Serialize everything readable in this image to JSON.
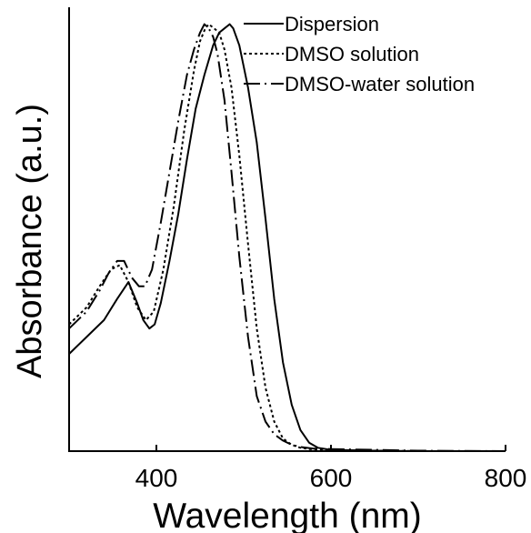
{
  "chart_data": {
    "type": "line",
    "title": "",
    "xlabel": "Wavelength (nm)",
    "ylabel": "Absorbance (a.u.)",
    "xlim": [
      300,
      800
    ],
    "ylim": [
      0,
      1.05
    ],
    "x_ticks": [
      400,
      600,
      800
    ],
    "x_tick_labels": [
      "400",
      "600",
      "800"
    ],
    "y_ticks_shown": false,
    "grid": false,
    "legend_position": "top-right",
    "series": [
      {
        "name": "Dispersion",
        "style": "solid",
        "x": [
          300,
          320,
          340,
          355,
          368,
          378,
          385,
          392,
          398,
          405,
          415,
          425,
          435,
          445,
          455,
          465,
          472,
          478,
          484,
          488,
          495,
          505,
          515,
          525,
          535,
          545,
          555,
          565,
          575,
          585,
          600,
          650,
          700,
          800
        ],
        "y": [
          0.23,
          0.27,
          0.31,
          0.36,
          0.4,
          0.35,
          0.31,
          0.29,
          0.3,
          0.35,
          0.45,
          0.56,
          0.69,
          0.81,
          0.89,
          0.96,
          0.99,
          1.0,
          1.01,
          1.0,
          0.96,
          0.86,
          0.73,
          0.55,
          0.36,
          0.21,
          0.11,
          0.05,
          0.02,
          0.008,
          0.003,
          0.001,
          0.0,
          0.0
        ]
      },
      {
        "name": "DMSO solution",
        "style": "dotted",
        "x": [
          300,
          320,
          335,
          348,
          358,
          368,
          378,
          388,
          397,
          408,
          420,
          432,
          443,
          450,
          456,
          460,
          466,
          472,
          478,
          486,
          495,
          505,
          515,
          525,
          535,
          545,
          555,
          565,
          575,
          590,
          620,
          700,
          800
        ],
        "y": [
          0.3,
          0.34,
          0.39,
          0.43,
          0.44,
          0.4,
          0.34,
          0.31,
          0.33,
          0.43,
          0.58,
          0.76,
          0.9,
          0.97,
          1.0,
          1.01,
          1.0,
          0.99,
          0.95,
          0.86,
          0.7,
          0.49,
          0.29,
          0.15,
          0.07,
          0.03,
          0.015,
          0.008,
          0.005,
          0.003,
          0.002,
          0.0,
          0.0
        ]
      },
      {
        "name": "DMSO-water solution",
        "style": "dashdot",
        "x": [
          300,
          320,
          335,
          345,
          355,
          363,
          372,
          380,
          387,
          395,
          405,
          415,
          425,
          435,
          443,
          450,
          455,
          460,
          465,
          470,
          478,
          486,
          495,
          505,
          515,
          525,
          535,
          545,
          555,
          565,
          580,
          600,
          650,
          700,
          800
        ],
        "y": [
          0.29,
          0.33,
          0.38,
          0.42,
          0.45,
          0.45,
          0.41,
          0.39,
          0.39,
          0.43,
          0.54,
          0.66,
          0.78,
          0.89,
          0.95,
          0.99,
          1.01,
          1.0,
          0.98,
          0.94,
          0.83,
          0.66,
          0.46,
          0.27,
          0.13,
          0.07,
          0.04,
          0.025,
          0.015,
          0.01,
          0.006,
          0.005,
          0.003,
          0.001,
          0.0
        ]
      }
    ]
  }
}
